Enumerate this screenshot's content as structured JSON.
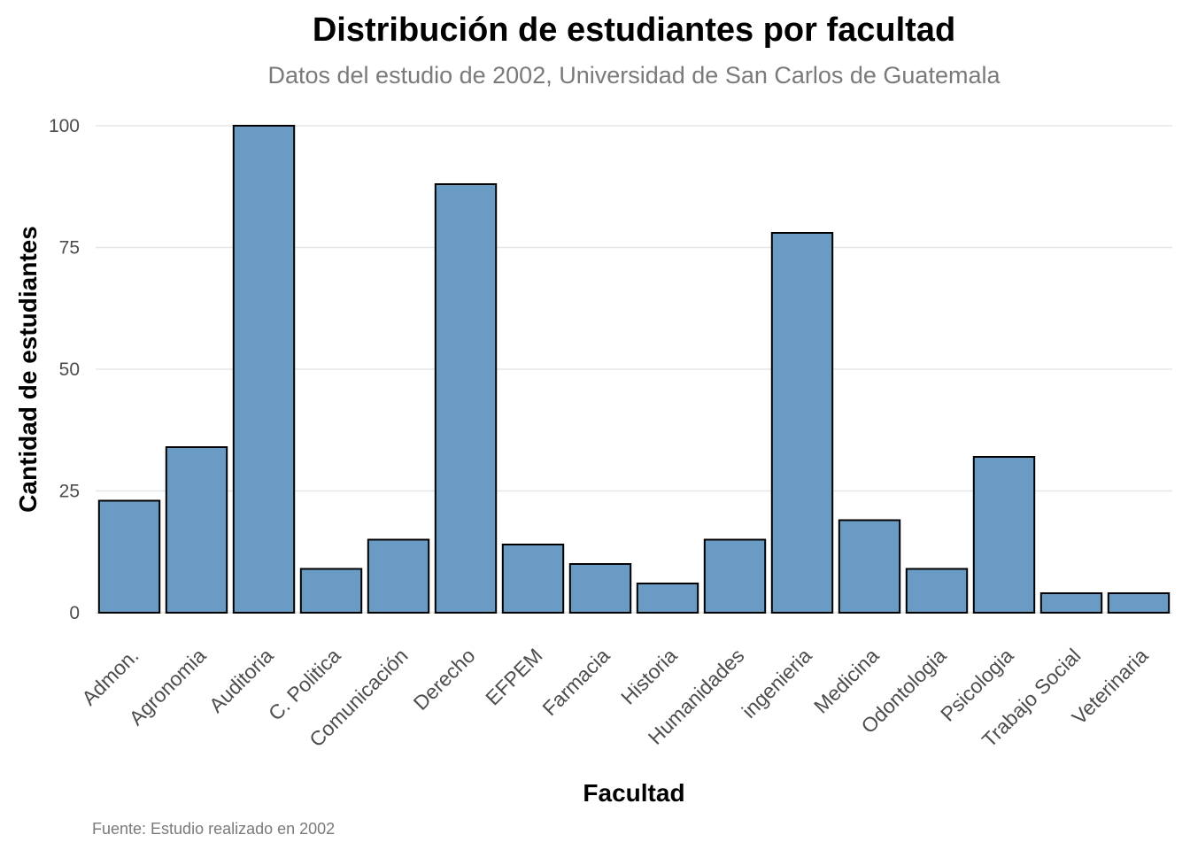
{
  "chart_data": {
    "type": "bar",
    "title": "Distribución de estudiantes por facultad",
    "subtitle": "Datos del estudio de 2002, Universidad de San Carlos de Guatemala",
    "xlabel": "Facultad",
    "ylabel": "Cantidad de estudiantes",
    "caption": "Fuente: Estudio realizado en 2002",
    "categories": [
      "Admon.",
      "Agronomia",
      "Auditoria",
      "C. Politica",
      "Comunicación",
      "Derecho",
      "EFPEM",
      "Farmacia",
      "Historia",
      "Humanidades",
      "ingenieria",
      "Medicina",
      "Odontologia",
      "Psicologia",
      "Trabajo Social",
      "Veterinaria"
    ],
    "values": [
      23,
      34,
      100,
      9,
      15,
      88,
      14,
      10,
      6,
      15,
      78,
      19,
      9,
      32,
      4,
      4
    ],
    "yticks": [
      "0",
      "25",
      "50",
      "75",
      "100"
    ],
    "ylim": [
      0,
      100
    ],
    "grid": true,
    "legend": "none",
    "bar_color": "#6a9bc4",
    "bar_outline": "#000000"
  }
}
